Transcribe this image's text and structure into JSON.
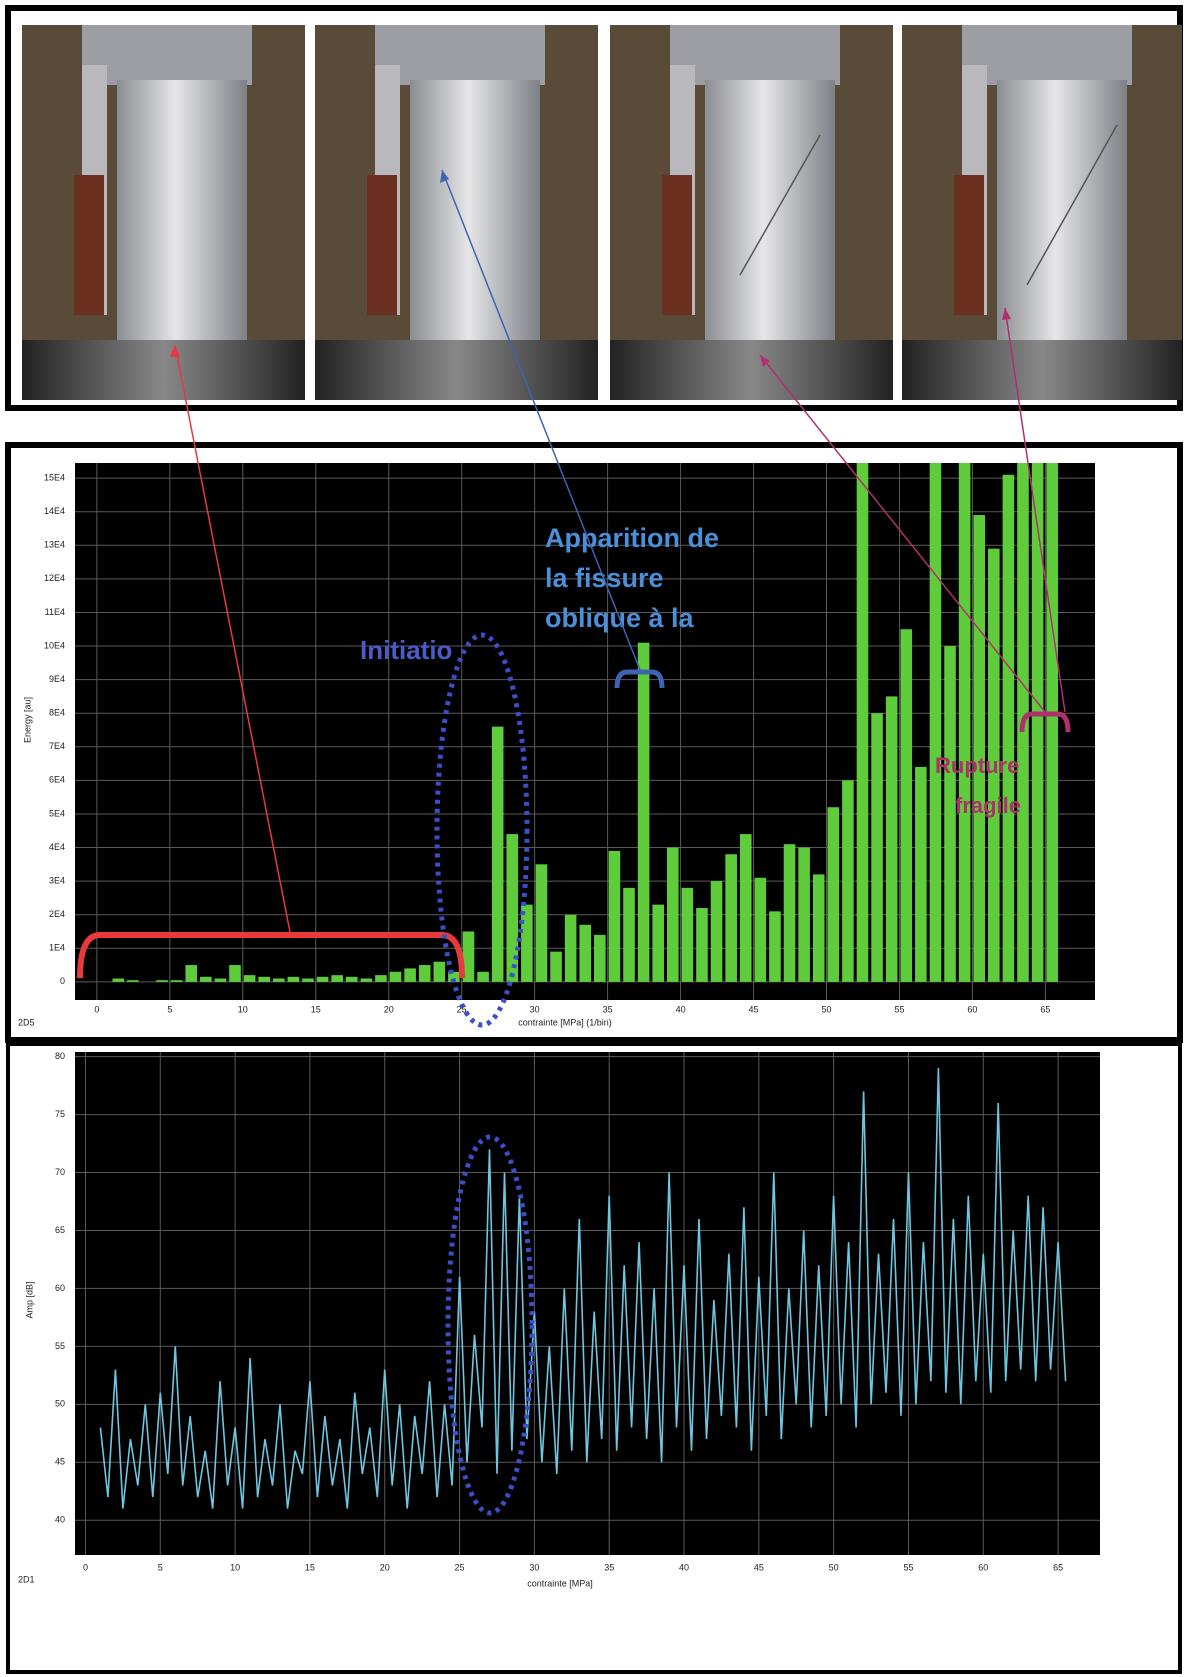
{
  "chart_data": [
    {
      "type": "histogram",
      "corner_label": "2D5",
      "x_label": "contrainte [MPa] (1/bin)",
      "y_label": "Energy [au]",
      "annotations": [
        "Initiatio",
        "Apparition de",
        "la fissure",
        "oblique à la",
        "Rupture",
        "fragile"
      ],
      "bins": [
        0,
        1,
        2,
        3,
        4,
        5,
        6,
        7,
        8,
        9,
        10,
        11,
        12,
        13,
        14,
        15,
        16,
        17,
        18,
        19,
        20,
        21,
        22,
        23,
        24,
        25,
        26,
        27,
        28,
        29,
        30,
        31,
        32,
        33,
        34,
        35,
        36,
        37,
        38,
        39,
        40,
        41,
        42,
        43,
        44,
        45,
        46,
        47,
        48,
        49,
        50,
        51,
        52,
        53,
        54,
        55,
        56,
        57,
        58,
        59,
        60,
        61,
        62,
        63,
        64,
        65,
        66
      ],
      "values": [
        0,
        1000,
        500,
        0,
        500,
        500,
        5000,
        1500,
        1000,
        5000,
        2000,
        1500,
        1000,
        1500,
        1000,
        1500,
        2000,
        1500,
        1000,
        2000,
        3000,
        4000,
        5000,
        6000,
        3000,
        15000,
        3000,
        76000,
        44000,
        23000,
        35000,
        9000,
        20000,
        17000,
        14000,
        39000,
        28000,
        101000,
        23000,
        40000,
        28000,
        22000,
        30000,
        38000,
        44000,
        31000,
        21000,
        41000,
        40000,
        32000,
        52000,
        60000,
        154500,
        80000,
        85000,
        105000,
        64000,
        154500,
        100000,
        154500,
        139000,
        129000,
        151000,
        154500,
        154500,
        154500
      ],
      "color": "#5fcc3c",
      "xlim": [
        -1.5,
        68.4
      ],
      "ylim": [
        -5400,
        154500
      ],
      "xticks": [
        0,
        5,
        10,
        15,
        20,
        25,
        30,
        35,
        40,
        45,
        50,
        55,
        60,
        65
      ],
      "yticks": [
        0,
        {
          "value": 10000,
          "label": "1E4"
        },
        {
          "value": 20000,
          "label": "2E4"
        },
        {
          "value": 30000,
          "label": "3E4"
        },
        {
          "value": 40000,
          "label": "4E4"
        },
        {
          "value": 50000,
          "label": "5E4"
        },
        {
          "value": 60000,
          "label": "6E4"
        },
        {
          "value": 70000,
          "label": "7E4"
        },
        {
          "value": 80000,
          "label": "8E4"
        },
        {
          "value": 90000,
          "label": "9E4"
        },
        {
          "value": 100000,
          "label": "10E4"
        },
        {
          "value": 110000,
          "label": "11E4"
        },
        {
          "value": 120000,
          "label": "12E4"
        },
        {
          "value": 130000,
          "label": "13E4"
        },
        {
          "value": 140000,
          "label": "14E4"
        },
        {
          "value": 150000,
          "label": "15E4"
        }
      ],
      "grid": true
    },
    {
      "type": "line",
      "corner_label": "2D1",
      "x_label": "contrainte [MPa]",
      "y_label": "Amp [dB]",
      "x": [
        1,
        1.5,
        2,
        2.5,
        3,
        3.5,
        4,
        4.5,
        5,
        5.5,
        6,
        6.5,
        7,
        7.5,
        8,
        8.5,
        9,
        9.5,
        10,
        10.5,
        11,
        11.5,
        12,
        12.5,
        13,
        13.5,
        14,
        14.5,
        15,
        15.5,
        16,
        16.5,
        17,
        17.5,
        18,
        18.5,
        19,
        19.5,
        20,
        20.5,
        21,
        21.5,
        22,
        22.5,
        23,
        23.5,
        24,
        24.5,
        25,
        25.5,
        26,
        26.5,
        27,
        27.5,
        28,
        28.5,
        29,
        29.5,
        30,
        30.5,
        31,
        31.5,
        32,
        32.5,
        33,
        33.5,
        34,
        34.5,
        35,
        35.5,
        36,
        36.5,
        37,
        37.5,
        38,
        38.5,
        39,
        39.5,
        40,
        40.5,
        41,
        41.5,
        42,
        42.5,
        43,
        43.5,
        44,
        44.5,
        45,
        45.5,
        46,
        46.5,
        47,
        47.5,
        48,
        48.5,
        49,
        49.5,
        50,
        50.5,
        51,
        51.5,
        52,
        52.5,
        53,
        53.5,
        54,
        54.5,
        55,
        55.5,
        56,
        56.5,
        57,
        57.5,
        58,
        58.5,
        59,
        59.5,
        60,
        60.5,
        61,
        61.5,
        62,
        62.5,
        63,
        63.5,
        64,
        64.5,
        65,
        65.5
      ],
      "series": [
        {
          "name": "Amp",
          "color": "#6ec6e0",
          "values": [
            48,
            42,
            53,
            41,
            47,
            43,
            50,
            42,
            51,
            44,
            55,
            43,
            49,
            42,
            46,
            41,
            52,
            43,
            48,
            41,
            54,
            42,
            47,
            43,
            50,
            41,
            46,
            44,
            52,
            42,
            49,
            43,
            47,
            41,
            51,
            44,
            48,
            42,
            53,
            43,
            50,
            41,
            49,
            44,
            52,
            42,
            50,
            43,
            61,
            45,
            56,
            48,
            72,
            44,
            70,
            46,
            68,
            47,
            58,
            45,
            55,
            44,
            60,
            46,
            66,
            45,
            58,
            47,
            68,
            46,
            62,
            48,
            64,
            47,
            60,
            45,
            70,
            48,
            62,
            46,
            66,
            47,
            59,
            49,
            63,
            48,
            67,
            46,
            61,
            49,
            70,
            47,
            60,
            50,
            65,
            48,
            62,
            49,
            68,
            50,
            64,
            48,
            77,
            50,
            63,
            51,
            66,
            49,
            70,
            50,
            64,
            52,
            79,
            51,
            66,
            50,
            68,
            52,
            63,
            51,
            76,
            52,
            65,
            53,
            68,
            52,
            67,
            53,
            64,
            52
          ]
        }
      ],
      "xlim": [
        -0.7,
        67.8
      ],
      "ylim": [
        37,
        80.4
      ],
      "xticks": [
        0,
        5,
        10,
        15,
        20,
        25,
        30,
        35,
        40,
        45,
        50,
        55,
        60,
        65
      ],
      "yticks": [
        40,
        45,
        50,
        55,
        60,
        65,
        70,
        75,
        80
      ],
      "grid": true
    }
  ]
}
